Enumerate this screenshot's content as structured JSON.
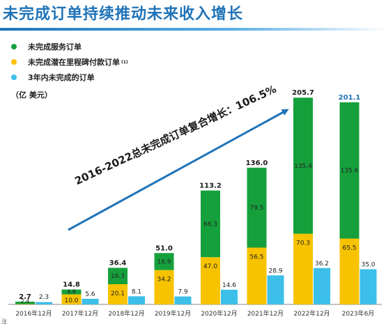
{
  "title": "未完成订单持续推动未来收入增长",
  "legend": [
    {
      "label": "未完成服务订单",
      "color": "#16a03c",
      "sup": ""
    },
    {
      "label": "未完成潜在里程碑付款订单",
      "color": "#f7c300",
      "sup": "(1)"
    },
    {
      "label": "3年内未完成的订单",
      "color": "#3cbfe8",
      "sup": ""
    }
  ],
  "unit_label": "（亿  美元）",
  "cagr_label": "2016-2022总未完成订单复合增长：106.5%",
  "footnote": "注",
  "chart_data": {
    "type": "bar",
    "categories": [
      "2016年12月",
      "2017年12月",
      "2018年12月",
      "2019年12月",
      "2020年12月",
      "2021年12月",
      "2022年12月",
      "2023年6月"
    ],
    "ylim": [
      0,
      210
    ],
    "series": [
      {
        "name": "未完成潜在里程碑付款订单",
        "color": "#f7c300",
        "values": [
          0.3,
          10.0,
          20.1,
          34.2,
          47.0,
          56.5,
          70.3,
          65.5
        ],
        "labels": [
          "",
          "10.0",
          "20.1",
          "34.2",
          "47.0",
          "56.5",
          "70.3",
          "65.5"
        ]
      },
      {
        "name": "未完成服务订单",
        "color": "#16a03c",
        "values": [
          2.4,
          4.8,
          16.3,
          16.9,
          66.3,
          79.5,
          135.4,
          135.6
        ],
        "labels": [
          "2.4",
          "4.8",
          "16.3",
          "16.9",
          "66.3",
          "79.5",
          "135.4",
          "135.6"
        ]
      },
      {
        "name": "3年内未完成的订单",
        "color": "#3cbfe8",
        "values": [
          2.3,
          5.6,
          8.1,
          7.9,
          14.6,
          28.9,
          36.2,
          35.0
        ],
        "labels": [
          "2.3",
          "5.6",
          "8.1",
          "7.9",
          "14.6",
          "28.9",
          "36.2",
          "35.0"
        ]
      }
    ],
    "totals": [
      "2.7",
      "14.8",
      "36.4",
      "51.0",
      "113.2",
      "136.0",
      "205.7",
      "201.1"
    ],
    "total_colors": [
      "#1a1a1a",
      "#1a1a1a",
      "#1a1a1a",
      "#1a1a1a",
      "#1a1a1a",
      "#1a1a1a",
      "#1a1a1a",
      "#1f73b7"
    ],
    "grid": false
  }
}
